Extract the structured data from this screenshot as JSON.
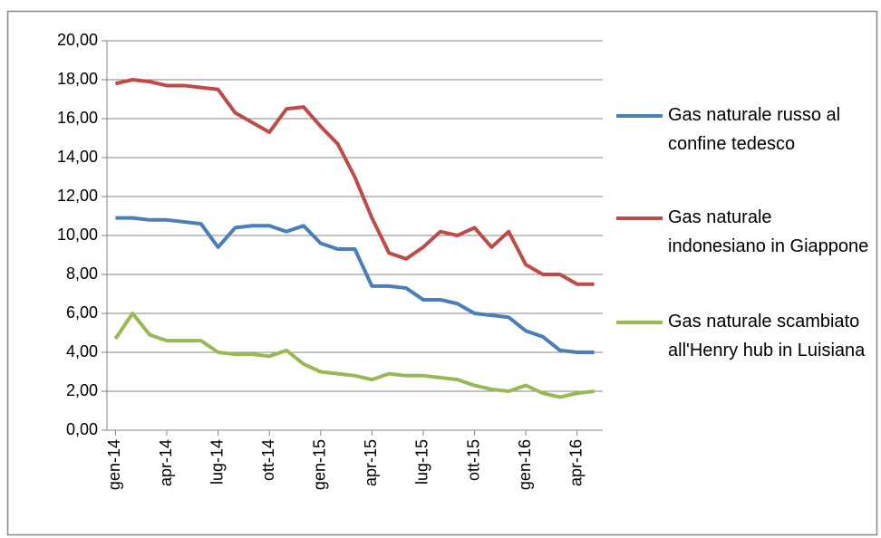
{
  "chart_data": {
    "type": "line",
    "categories": [
      "gen-14",
      null,
      null,
      "apr-14",
      null,
      null,
      "lug-14",
      null,
      null,
      "ott-14",
      null,
      null,
      "gen-15",
      null,
      null,
      "apr-15",
      null,
      null,
      "lug-15",
      null,
      null,
      "ott-15",
      null,
      null,
      "gen-16",
      null,
      null,
      "apr-16",
      null
    ],
    "ylim": [
      0,
      20
    ],
    "yticks": [
      {
        "value": 0,
        "label": "0,00"
      },
      {
        "value": 2,
        "label": "2,00"
      },
      {
        "value": 4,
        "label": "4,00"
      },
      {
        "value": 6,
        "label": "6,00"
      },
      {
        "value": 8,
        "label": "8,00"
      },
      {
        "value": 10,
        "label": "10,00"
      },
      {
        "value": 12,
        "label": "12,00"
      },
      {
        "value": 14,
        "label": "14,00"
      },
      {
        "value": 16,
        "label": "16,00"
      },
      {
        "value": 18,
        "label": "18,00"
      },
      {
        "value": 20,
        "label": "20,00"
      }
    ],
    "grid": true,
    "legend": "right",
    "series": [
      {
        "name": "Gas naturale russo al confine tedesco",
        "color": "#4a7ebb",
        "values": [
          10.9,
          10.9,
          10.8,
          10.8,
          10.7,
          10.6,
          9.4,
          10.4,
          10.5,
          10.5,
          10.2,
          10.5,
          9.6,
          9.3,
          9.3,
          7.4,
          7.4,
          7.3,
          6.7,
          6.7,
          6.5,
          6.0,
          5.9,
          5.8,
          5.1,
          4.8,
          4.1,
          4.0,
          4.0
        ]
      },
      {
        "name": "Gas naturale indonesiano in Giappone",
        "color": "#be4b48",
        "values": [
          17.8,
          18.0,
          17.9,
          17.7,
          17.7,
          17.6,
          17.5,
          16.3,
          15.8,
          15.3,
          16.5,
          16.6,
          15.6,
          14.7,
          13.0,
          10.9,
          9.1,
          8.8,
          9.4,
          10.2,
          10.0,
          10.4,
          9.4,
          10.2,
          8.5,
          8.0,
          8.0,
          7.5,
          7.5
        ]
      },
      {
        "name": "Gas naturale scambiato all'Henry hub in Luisiana",
        "color": "#98b954",
        "values": [
          4.7,
          6.0,
          4.9,
          4.6,
          4.6,
          4.6,
          4.0,
          3.9,
          3.9,
          3.8,
          4.1,
          3.4,
          3.0,
          2.9,
          2.8,
          2.6,
          2.9,
          2.8,
          2.8,
          2.7,
          2.6,
          2.3,
          2.1,
          2.0,
          2.3,
          1.9,
          1.7,
          1.9,
          2.0
        ]
      }
    ]
  }
}
